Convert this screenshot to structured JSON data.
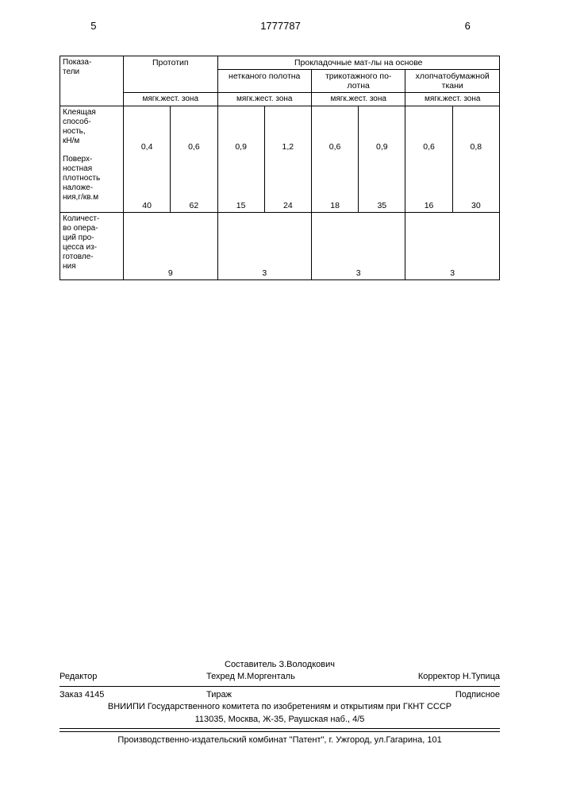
{
  "header": {
    "page_left": "5",
    "doc_number": "1777787",
    "page_right": "6"
  },
  "table": {
    "col1_header": "Показа-\nтели",
    "group_prototype": "Прототип",
    "group_materials": "Прокладочные мат-лы на основе",
    "subgroup_1": "нетканого полотна",
    "subgroup_2": "трикотажного по-\nлотна",
    "subgroup_3": "хлопчатобумажной\nткани",
    "zone_label": "мягк.жест. зона",
    "row1_label": "Клеящая\nспособ-\nность,\nкН/м",
    "row1_vals": [
      "0,4",
      "0,6",
      "0,9",
      "1,2",
      "0,6",
      "0,9",
      "0,6",
      "0,8"
    ],
    "row2_label": "Поверх-\nностная\nплотность\nналоже-\nния,г/кв.м",
    "row2_vals": [
      "40",
      "62",
      "15",
      "24",
      "18",
      "35",
      "16",
      "30"
    ],
    "row3_label": "Количест-\nво опера-\nций про-\nцесса из-\nготовле-\nния",
    "row3_vals": [
      "9",
      "3",
      "3",
      "3"
    ]
  },
  "footer": {
    "compiler": "Составитель З.Володкович",
    "editor_label": "Редактор",
    "techred": "Техред М.Моргенталь",
    "corrector": "Корректор Н.Тупица",
    "order": "Заказ 4145",
    "tirazh": "Тираж",
    "subscription": "Подписное",
    "org": "ВНИИПИ Государственного комитета по изобретениям и открытиям при ГКНТ СССР",
    "address": "113035, Москва, Ж-35, Раушская наб., 4/5",
    "publisher": "Производственно-издательский комбинат \"Патент\", г. Ужгород, ул.Гагарина, 101"
  },
  "colors": {
    "border": "#000000",
    "text": "#000000",
    "bg": "#ffffff"
  }
}
